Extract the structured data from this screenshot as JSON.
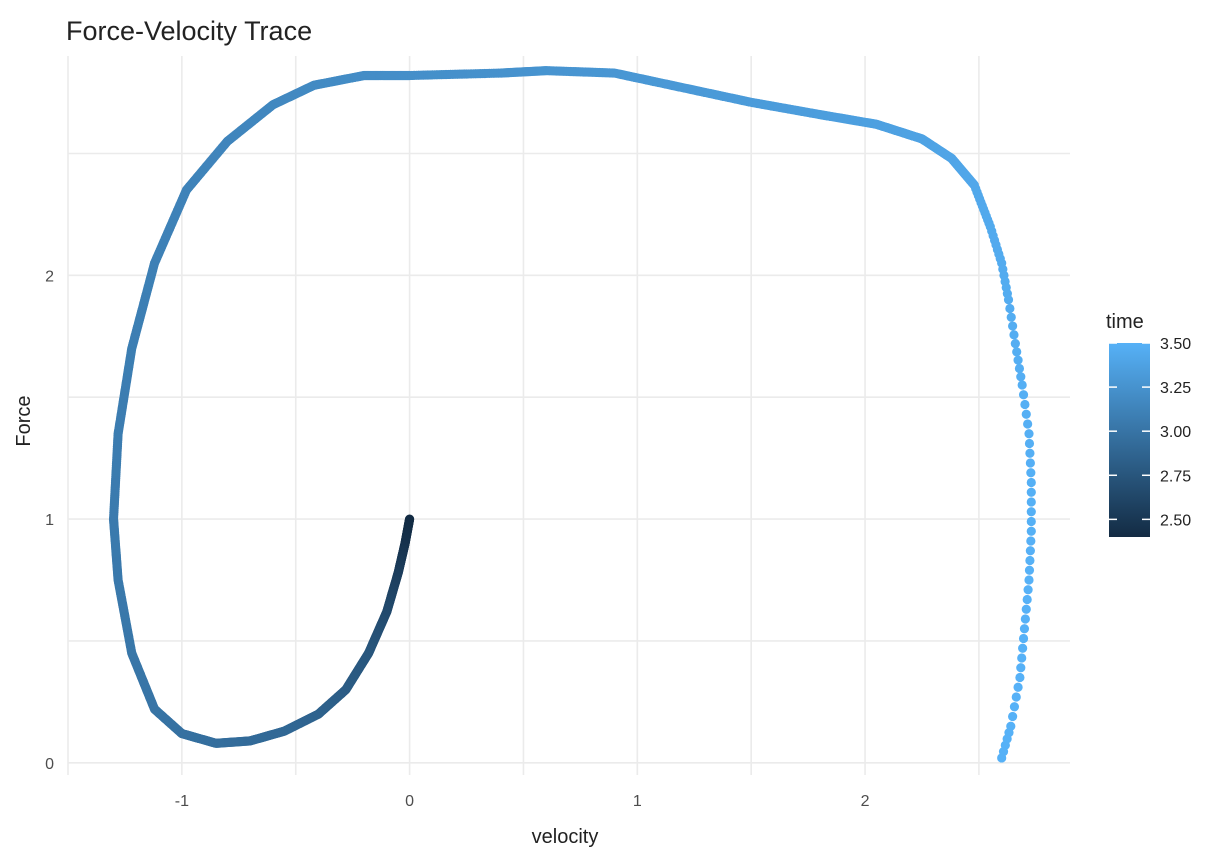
{
  "chart_data": {
    "type": "scatter",
    "title": "Force-Velocity Trace",
    "xlabel": "velocity",
    "ylabel": "Force",
    "xlim": [
      -1.5,
      2.9
    ],
    "ylim": [
      -0.05,
      2.9
    ],
    "x_ticks": [
      -1,
      0,
      1,
      2
    ],
    "x_tick_labels": [
      "-1",
      "0",
      "1",
      "2"
    ],
    "x_minor_grid": [
      -1.5,
      -0.5,
      0.5,
      1.5,
      2.5
    ],
    "y_ticks": [
      0,
      1,
      2
    ],
    "y_tick_labels": [
      "0",
      "1",
      "2"
    ],
    "y_minor_grid": [
      0.5,
      1.5,
      2.5
    ],
    "grid": true,
    "color_variable": "time",
    "color_scale": {
      "low_value": 2.4,
      "high_value": 3.5,
      "low_color": "#132b43",
      "high_color": "#56b1f7",
      "breaks": [
        2.5,
        2.75,
        3.0,
        3.25,
        3.5
      ],
      "break_labels": [
        "2.50",
        "2.75",
        "3.00",
        "3.25",
        "3.50"
      ]
    },
    "legend": {
      "title": "time",
      "position": "right"
    },
    "trace": {
      "x": [
        0.0,
        -0.02,
        -0.05,
        -0.1,
        -0.18,
        -0.28,
        -0.4,
        -0.55,
        -0.7,
        -0.85,
        -1.0,
        -1.12,
        -1.22,
        -1.28,
        -1.3,
        -1.28,
        -1.22,
        -1.12,
        -0.98,
        -0.8,
        -0.6,
        -0.42,
        -0.2,
        0.0,
        0.4,
        0.6,
        0.9,
        1.2,
        1.5,
        1.8,
        2.05,
        2.25,
        2.38,
        2.48,
        2.55,
        2.6,
        2.63,
        2.66,
        2.69,
        2.72,
        2.73,
        2.73,
        2.72,
        2.7,
        2.68,
        2.64,
        2.6
      ],
      "y": [
        1.0,
        0.9,
        0.78,
        0.62,
        0.45,
        0.3,
        0.2,
        0.13,
        0.09,
        0.08,
        0.12,
        0.22,
        0.45,
        0.75,
        1.0,
        1.35,
        1.7,
        2.05,
        2.35,
        2.55,
        2.7,
        2.78,
        2.82,
        2.82,
        2.83,
        2.84,
        2.83,
        2.77,
        2.71,
        2.66,
        2.62,
        2.56,
        2.48,
        2.37,
        2.2,
        2.05,
        1.9,
        1.72,
        1.55,
        1.35,
        1.15,
        0.95,
        0.75,
        0.55,
        0.35,
        0.15,
        0.02
      ],
      "time": [
        2.4,
        2.45,
        2.55,
        2.65,
        2.75,
        2.8,
        2.85,
        2.9,
        2.92,
        2.95,
        2.97,
        3.0,
        3.02,
        3.04,
        3.05,
        3.07,
        3.08,
        3.1,
        3.12,
        3.14,
        3.16,
        3.18,
        3.2,
        3.22,
        3.24,
        3.26,
        3.28,
        3.3,
        3.32,
        3.34,
        3.36,
        3.38,
        3.4,
        3.42,
        3.44,
        3.45,
        3.46,
        3.47,
        3.48,
        3.48,
        3.49,
        3.49,
        3.5,
        3.5,
        3.5,
        3.5,
        3.5
      ],
      "density": [
        40,
        40,
        40,
        40,
        40,
        40,
        40,
        40,
        40,
        40,
        40,
        40,
        40,
        40,
        40,
        40,
        40,
        40,
        40,
        40,
        40,
        40,
        40,
        40,
        40,
        40,
        40,
        40,
        40,
        40,
        40,
        40,
        40,
        12,
        8,
        6,
        5,
        5,
        5,
        5,
        5,
        5,
        5,
        5,
        5,
        5,
        5
      ]
    }
  }
}
